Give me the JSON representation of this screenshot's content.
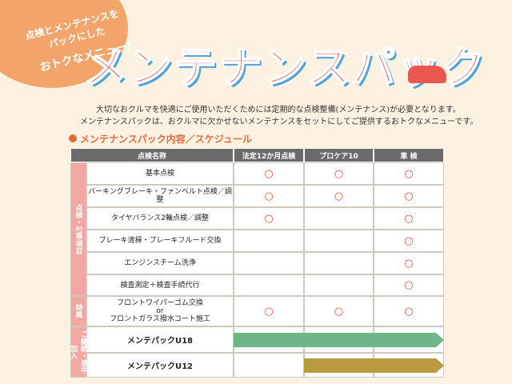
{
  "badge": [
    "点検とメンテナンスを",
    "パックにした",
    "おトクなメニュー!"
  ],
  "title": "メンテナンスパック",
  "intro": [
    "大切なおクルマを快適にご使用いただくためには定期的な点検整備(メンテナンス)が必要となります。",
    "メンテナンスパックは、おクルマに欠かせないメンテナンスをセットにしてご提供するおトクなメニューです。"
  ],
  "section_title": "メンテナンスパック内容／スケジュール",
  "table": {
    "header": [
      "点検名称",
      "法定12か月点検",
      "プロケア10",
      "車 検"
    ],
    "groups": [
      {
        "label": "点検・付帯項目",
        "rows": [
          {
            "name": [
              "基本点検"
            ],
            "marks": [
              "○",
              "○",
              "○"
            ]
          },
          {
            "name": [
              "パーキングブレーキ・ファンベルト点検／調整"
            ],
            "marks": [
              "○",
              "○",
              "○"
            ]
          },
          {
            "name": [
              "タイヤバランス2輪点検／調整"
            ],
            "marks": [
              "○",
              null,
              "○"
            ]
          },
          {
            "name": [
              "ブレーキ清掃・ブレーキフルード交換"
            ],
            "marks": [
              null,
              null,
              "○"
            ]
          },
          {
            "name": [
              "エンジンスチーム洗浄"
            ],
            "marks": [
              null,
              null,
              "○"
            ]
          },
          {
            "name": [
              "検査測定＋検査手続代行"
            ],
            "marks": [
              null,
              null,
              "○"
            ]
          }
        ]
      },
      {
        "label": "特典",
        "rows": [
          {
            "name": [
              "フロントワイパーゴム交換",
              "or",
              "フロントガラス撥水コート施工"
            ],
            "marks": [
              "○",
              "○",
              "○"
            ]
          }
        ]
      },
      {
        "label": "ご継続・途中加入",
        "rows": [
          {
            "name": [
              "メンテパックU18"
            ],
            "marks": [
              null,
              null,
              null
            ]
          },
          {
            "name": [
              "メンテパックU12"
            ],
            "marks": [
              null,
              null,
              null
            ]
          }
        ]
      }
    ]
  }
}
